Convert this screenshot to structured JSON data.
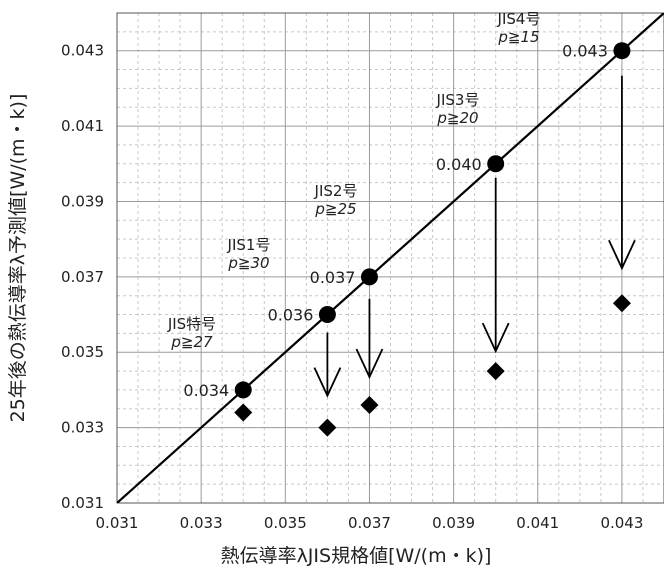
{
  "chart_data": {
    "type": "scatter",
    "xlabel": "熱伝導率λJIS規格値[W/(m・k)]",
    "ylabel": "25年後の熱伝導率λ予測値[W/(m・k)]",
    "xlim": [
      0.031,
      0.044
    ],
    "ylim": [
      0.031,
      0.044
    ],
    "x_ticks": [
      "0.031",
      "0.033",
      "0.035",
      "0.037",
      "0.039",
      "0.041",
      "0.043"
    ],
    "y_ticks": [
      "0.031",
      "0.033",
      "0.035",
      "0.037",
      "0.039",
      "0.041",
      "0.043"
    ],
    "reference_line": {
      "style": "y = x",
      "color": "#000000"
    },
    "series": [
      {
        "marker": "circle",
        "points": [
          {
            "x": 0.034,
            "y": 0.034,
            "label": "0.034"
          },
          {
            "x": 0.036,
            "y": 0.036,
            "label": "0.036"
          },
          {
            "x": 0.037,
            "y": 0.037,
            "label": "0.037"
          },
          {
            "x": 0.04,
            "y": 0.04,
            "label": "0.040"
          },
          {
            "x": 0.043,
            "y": 0.043,
            "label": "0.043"
          }
        ]
      },
      {
        "marker": "diamond",
        "points": [
          {
            "x": 0.034,
            "y": 0.0334
          },
          {
            "x": 0.036,
            "y": 0.033
          },
          {
            "x": 0.037,
            "y": 0.0336
          },
          {
            "x": 0.04,
            "y": 0.0345
          },
          {
            "x": 0.043,
            "y": 0.0363
          }
        ]
      }
    ],
    "annotations": [
      {
        "grade": "JIS特号",
        "p": "p≧27"
      },
      {
        "grade": "JIS1号",
        "p": "p≧30"
      },
      {
        "grade": "JIS2号",
        "p": "p≧25"
      },
      {
        "grade": "JIS3号",
        "p": "p≧20"
      },
      {
        "grade": "JIS4号",
        "p": "p≧15"
      }
    ],
    "grid": true,
    "colors": {
      "line": "#000000",
      "grid_major": "#9a9a9a",
      "grid_minor": "#c8c8c8",
      "marker": "#000000"
    }
  }
}
